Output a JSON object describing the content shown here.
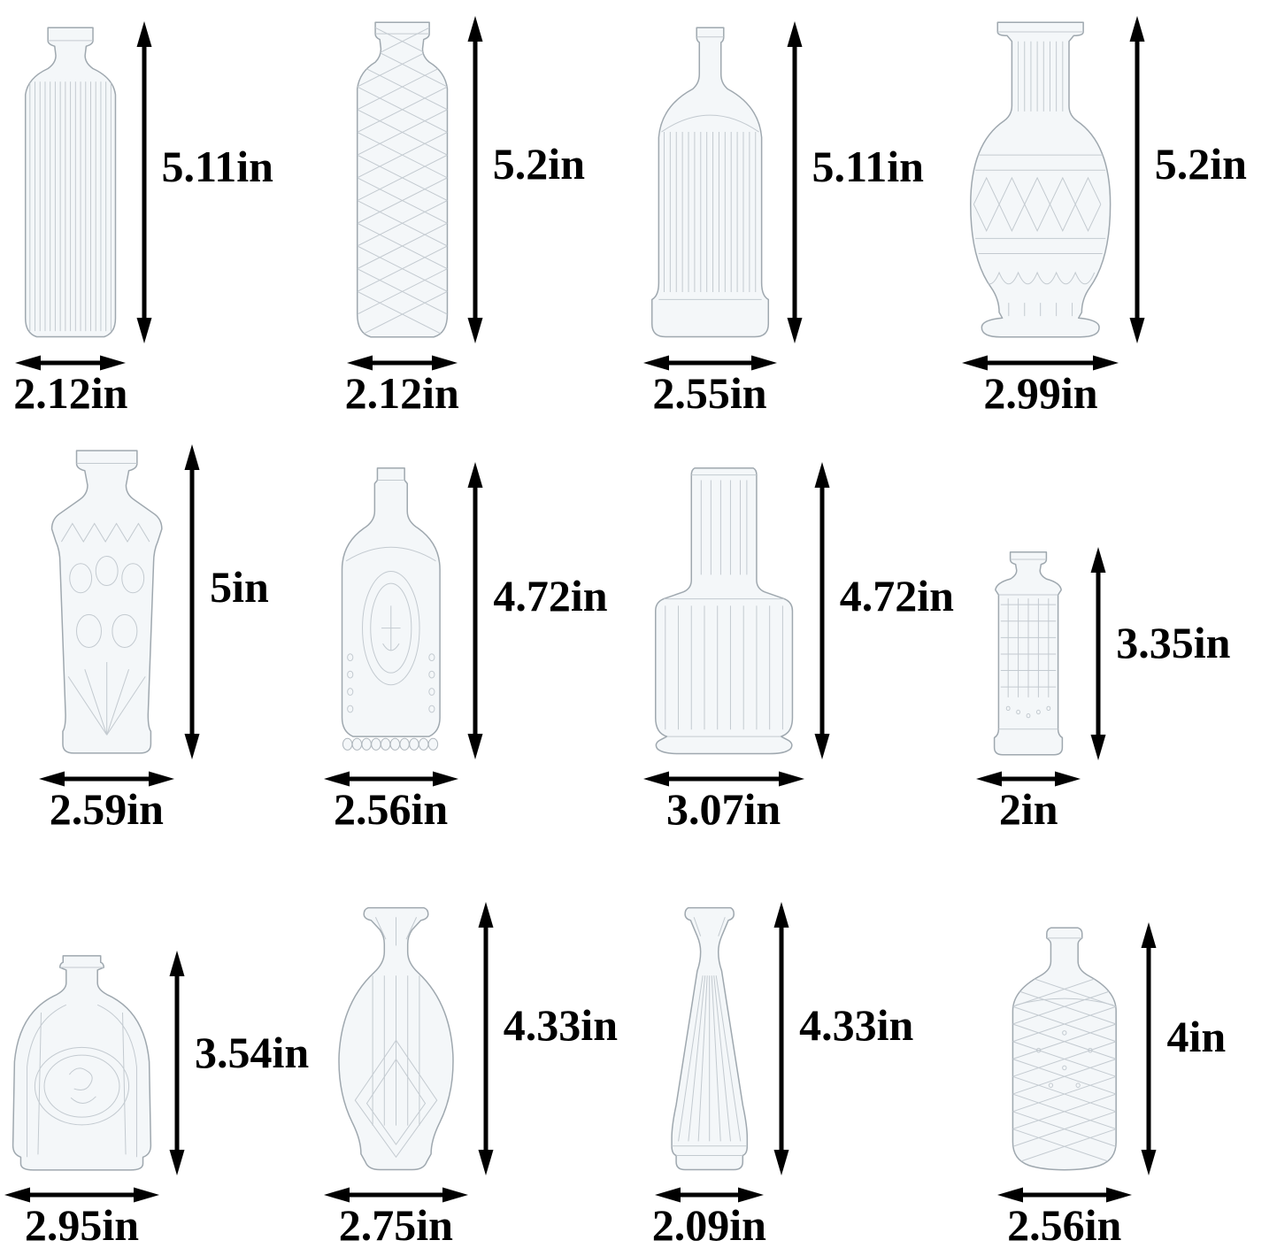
{
  "figure": {
    "description": "bud-vase-size-chart",
    "unit": "in",
    "background_color": "#ffffff",
    "annotation_color": "#000000",
    "rows": 3,
    "columns": 4
  },
  "vases": [
    {
      "name": "ribbed-cylinder-bud-vase",
      "shape": "ribbed-cylinder",
      "height_label": "5.11in",
      "width_label": "2.12in"
    },
    {
      "name": "diamond-quilted-bottle-vase",
      "shape": "diamond-cylinder",
      "height_label": "5.2in",
      "width_label": "2.12in"
    },
    {
      "name": "ribbed-apothecary-bottle-vase",
      "shape": "ribbed-bottle",
      "height_label": "5.11in",
      "width_label": "2.55in"
    },
    {
      "name": "fluted-neck-round-carafe-vase",
      "shape": "round-carafe",
      "height_label": "5.2in",
      "width_label": "2.99in"
    },
    {
      "name": "hobstar-embossed-square-vase",
      "shape": "hobstar-square",
      "height_label": "5in",
      "width_label": "2.59in"
    },
    {
      "name": "medallion-embossed-bottle-vase",
      "shape": "medallion-bottle",
      "height_label": "4.72in",
      "width_label": "2.56in"
    },
    {
      "name": "stepped-neck-cylinder-vase",
      "shape": "stepped-cylinder",
      "height_label": "4.72in",
      "width_label": "3.07in"
    },
    {
      "name": "square-waffle-bottle-vase",
      "shape": "square-waffle",
      "height_label": "3.35in",
      "width_label": "2in"
    },
    {
      "name": "cameo-dome-bottle-vase",
      "shape": "dome-cameo",
      "height_label": "3.54in",
      "width_label": "2.95in"
    },
    {
      "name": "faceted-diamond-carafe-vase",
      "shape": "faceted-carafe",
      "height_label": "4.33in",
      "width_label": "2.75in"
    },
    {
      "name": "pleated-taper-vase",
      "shape": "pleated-taper",
      "height_label": "4.33in",
      "width_label": "2.09in"
    },
    {
      "name": "lattice-diamond-bottle-vase",
      "shape": "lattice-bottle",
      "height_label": "4in",
      "width_label": "2.56in"
    }
  ]
}
